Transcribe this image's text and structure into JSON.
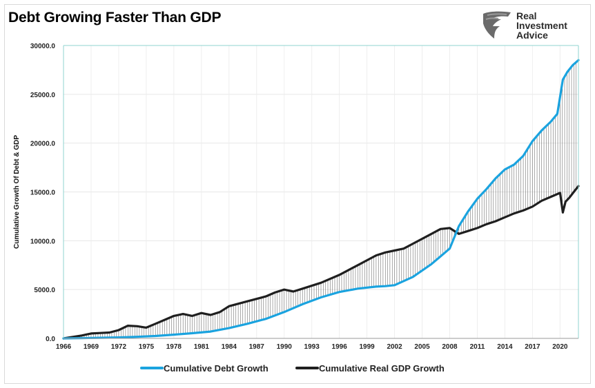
{
  "chart_data": {
    "type": "line",
    "title": "Debt Growing Faster Than GDP",
    "xlabel": "",
    "ylabel": "Cumulative Growth Of Debt & GDP",
    "xlim": [
      1966,
      2022
    ],
    "ylim": [
      0,
      30000
    ],
    "y_ticks": [
      "0.0",
      "5000.0",
      "10000.0",
      "15000.0",
      "20000.0",
      "25000.0",
      "30000.0"
    ],
    "x_ticks": [
      "1966",
      "1969",
      "1972",
      "1975",
      "1978",
      "1981",
      "1984",
      "1987",
      "1990",
      "1993",
      "1996",
      "1999",
      "2002",
      "2005",
      "2008",
      "2011",
      "2014",
      "2017",
      "2020"
    ],
    "grid": true,
    "legend": "bottom",
    "series": [
      {
        "name": "Cumulative Debt Growth",
        "color": "#1aa3df",
        "x": [
          1966,
          1968,
          1970,
          1972,
          1974,
          1976,
          1978,
          1980,
          1982,
          1984,
          1986,
          1988,
          1990,
          1992,
          1994,
          1996,
          1998,
          2000,
          2001,
          2002,
          2004,
          2006,
          2008,
          2009,
          2010,
          2011,
          2012,
          2013,
          2014,
          2015,
          2016,
          2017,
          2018,
          2019,
          2019.7,
          2020.3,
          2020.8,
          2021.4,
          2022
        ],
        "values": [
          0,
          30,
          60,
          100,
          160,
          250,
          380,
          530,
          700,
          1050,
          1500,
          2000,
          2700,
          3500,
          4200,
          4750,
          5100,
          5300,
          5350,
          5450,
          6300,
          7600,
          9200,
          11500,
          13000,
          14300,
          15300,
          16400,
          17300,
          17800,
          18700,
          20200,
          21300,
          22200,
          23000,
          26500,
          27300,
          28000,
          28500
        ]
      },
      {
        "name": "Cumulative Real GDP Growth",
        "color": "#1f1f1f",
        "x": [
          1966,
          1968,
          1969,
          1970,
          1971,
          1972,
          1973,
          1974,
          1975,
          1976,
          1977,
          1978,
          1979,
          1980,
          1981,
          1982,
          1983,
          1984,
          1986,
          1988,
          1989,
          1990,
          1991,
          1992,
          1994,
          1996,
          1998,
          2000,
          2001,
          2002,
          2003,
          2004,
          2006,
          2007,
          2008,
          2009,
          2010,
          2011,
          2012,
          2013,
          2014,
          2015,
          2016,
          2017,
          2018,
          2019,
          2020,
          2020.3,
          2020.6,
          2021,
          2021.5,
          2022
        ],
        "values": [
          0,
          300,
          500,
          550,
          600,
          850,
          1300,
          1250,
          1100,
          1500,
          1900,
          2300,
          2500,
          2300,
          2600,
          2400,
          2700,
          3300,
          3800,
          4300,
          4700,
          5000,
          4800,
          5100,
          5700,
          6500,
          7500,
          8500,
          8800,
          9000,
          9200,
          9700,
          10700,
          11200,
          11300,
          10700,
          11000,
          11300,
          11700,
          12000,
          12400,
          12800,
          13100,
          13500,
          14100,
          14500,
          14900,
          12900,
          14000,
          14400,
          15000,
          15600
        ]
      }
    ]
  }
}
